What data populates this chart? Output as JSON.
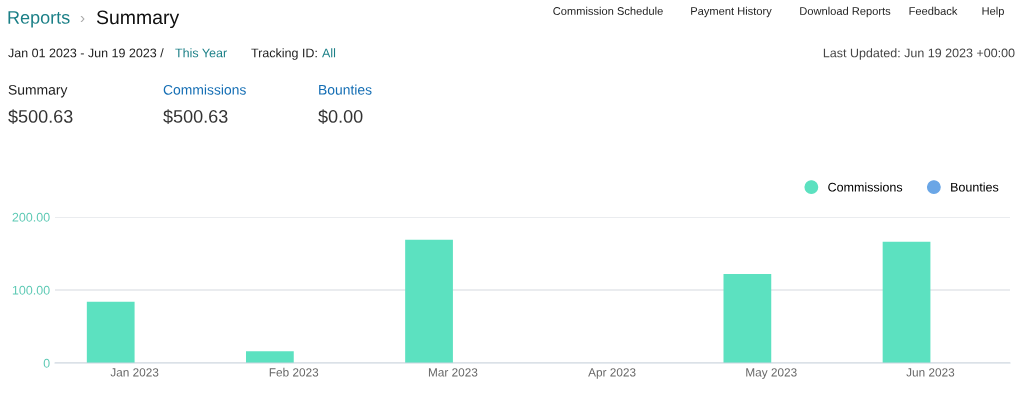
{
  "chart_data": {
    "type": "bar",
    "categories": [
      "Jan 2023",
      "Feb 2023",
      "Mar 2023",
      "Apr 2023",
      "May 2023",
      "Jun 2023"
    ],
    "series": [
      {
        "name": "Commissions",
        "color": "#5ce1c0",
        "values": [
          84,
          16,
          169,
          0,
          122,
          166
        ]
      },
      {
        "name": "Bounties",
        "color": "#6aa6e6",
        "values": [
          0,
          0,
          0,
          0,
          0,
          0
        ]
      }
    ],
    "ylim": [
      0,
      200
    ],
    "yticks": [
      0,
      {
        "value": 100,
        "label": "100.00"
      },
      {
        "value": 200,
        "label": "200.00"
      }
    ],
    "grid": "y",
    "legend": "top right",
    "annotations": [
      "Reports",
      "›",
      "Summary",
      "Commission Schedule",
      "Payment History",
      "Download Reports",
      "Feedback",
      "Help",
      "Jan 01 2023 - Jun 19 2023 /",
      "This Year",
      "Tracking ID:",
      "All",
      "Last Updated: Jun 19 2023 +00:00",
      "Summary",
      "$500.63",
      "Commissions",
      "$500.63",
      "Bounties",
      "$0.00"
    ]
  }
}
